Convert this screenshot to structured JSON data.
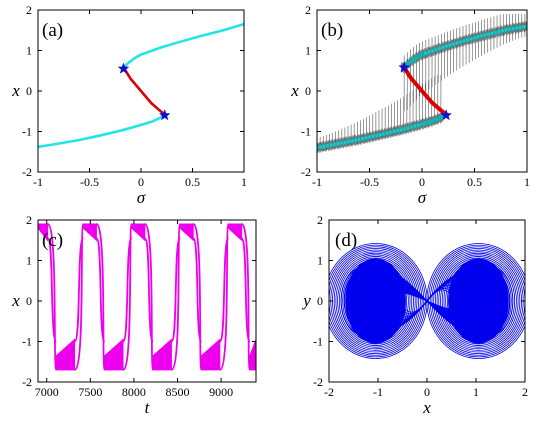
{
  "chart_data": [
    {
      "panel": "(a)",
      "type": "line",
      "xlabel": "σ",
      "ylabel": "x",
      "xlim": [
        -1,
        1
      ],
      "ylim": [
        -2,
        2
      ],
      "xticks": [
        -1,
        -0.5,
        0,
        0.5,
        1
      ],
      "yticks": [
        -2,
        -1,
        0,
        1,
        2
      ],
      "xtick_labels": [
        "-1",
        "-0.5",
        "0",
        "0.5",
        "1"
      ],
      "ytick_labels": [
        "-2",
        "-1",
        "0",
        "1",
        "2"
      ],
      "branches": [
        {
          "role": "stable-lower",
          "color": "#22e5e5",
          "x": [
            -1.0,
            -0.8,
            -0.6,
            -0.4,
            -0.2,
            0.0,
            0.1,
            0.18,
            0.23
          ],
          "y": [
            -1.38,
            -1.3,
            -1.21,
            -1.1,
            -0.98,
            -0.84,
            -0.76,
            -0.67,
            -0.58
          ]
        },
        {
          "role": "unstable-middle",
          "color": "#dd0000",
          "x": [
            -0.17,
            -0.1,
            0.0,
            0.1,
            0.2,
            0.23
          ],
          "y": [
            0.58,
            0.3,
            0.0,
            -0.3,
            -0.52,
            -0.58
          ]
        },
        {
          "role": "stable-upper",
          "color": "#22e5e5",
          "x": [
            -0.17,
            -0.12,
            -0.05,
            0.0,
            0.2,
            0.4,
            0.6,
            0.8,
            1.0
          ],
          "y": [
            0.58,
            0.7,
            0.83,
            0.9,
            1.08,
            1.23,
            1.37,
            1.5,
            1.65
          ]
        }
      ],
      "fold_points": {
        "color": "#1010cc",
        "x": [
          -0.17,
          0.23
        ],
        "y": [
          0.55,
          -0.6
        ]
      }
    },
    {
      "panel": "(b)",
      "type": "line",
      "xlabel": "σ",
      "ylabel": "x",
      "xlim": [
        -1,
        1
      ],
      "ylim": [
        -2,
        2
      ],
      "xticks": [
        -1,
        -0.5,
        0,
        0.5,
        1
      ],
      "yticks": [
        -2,
        -1,
        0,
        1,
        2
      ],
      "xtick_labels": [
        "-1",
        "-0.5",
        "0",
        "0.5",
        "1"
      ],
      "ytick_labels": [
        "-2",
        "-1",
        "0",
        "1",
        "2"
      ],
      "trajectory_color": "#555555",
      "spike_lower_range": [
        -1.0,
        0.2
      ],
      "spike_upper_range": [
        -0.2,
        1.0
      ],
      "spike_count": 40,
      "branches": [
        {
          "role": "stable-lower",
          "color": "#22c8c8",
          "x": [
            -1.0,
            -0.8,
            -0.6,
            -0.4,
            -0.2,
            0.0,
            0.1,
            0.18,
            0.23
          ],
          "y": [
            -1.4,
            -1.3,
            -1.2,
            -1.08,
            -0.96,
            -0.82,
            -0.74,
            -0.66,
            -0.58
          ]
        },
        {
          "role": "unstable-middle",
          "color": "#dd0000",
          "x": [
            -0.17,
            -0.1,
            0.0,
            0.1,
            0.2,
            0.23
          ],
          "y": [
            0.58,
            0.3,
            0.0,
            -0.3,
            -0.52,
            -0.58
          ]
        },
        {
          "role": "stable-upper",
          "color": "#22c8c8",
          "x": [
            -0.17,
            -0.12,
            -0.05,
            0.0,
            0.2,
            0.4,
            0.6,
            0.8,
            1.0
          ],
          "y": [
            0.58,
            0.7,
            0.83,
            0.9,
            1.08,
            1.24,
            1.38,
            1.51,
            1.6
          ]
        }
      ],
      "fold_points": {
        "color": "#1010cc",
        "x": [
          -0.17,
          0.23
        ],
        "y": [
          0.58,
          -0.6
        ]
      }
    },
    {
      "panel": "(c)",
      "type": "area",
      "xlabel": "t",
      "ylabel": "x",
      "xlim": [
        6900,
        9400
      ],
      "ylim": [
        -2,
        2
      ],
      "xticks": [
        7000,
        7500,
        8000,
        8500,
        9000
      ],
      "yticks": [
        -2,
        -1,
        0,
        1,
        2
      ],
      "xtick_labels": [
        "7000",
        "7500",
        "8000",
        "8500",
        "9000"
      ],
      "ytick_labels": [
        "-2",
        "-1",
        "0",
        "1",
        "2"
      ],
      "color": "#ee00ee",
      "period": 555,
      "high_segments": [
        [
          6900,
          7010
        ],
        [
          7420,
          7570
        ],
        [
          7975,
          8125
        ],
        [
          8530,
          8680
        ],
        [
          9085,
          9235
        ]
      ],
      "low_segments": [
        [
          7110,
          7320
        ],
        [
          7665,
          7875
        ],
        [
          8220,
          8430
        ],
        [
          8775,
          8985
        ],
        [
          9330,
          9400
        ]
      ],
      "high_band": [
        1.55,
        1.9
      ],
      "low_band": [
        -1.7,
        -1.0
      ]
    },
    {
      "panel": "(d)",
      "type": "line",
      "xlabel": "x",
      "ylabel": "y",
      "xlim": [
        -2,
        2
      ],
      "ylim": [
        -2,
        2
      ],
      "xticks": [
        -2,
        -1,
        0,
        1,
        2
      ],
      "yticks": [
        -2,
        -1,
        0,
        1,
        2
      ],
      "xtick_labels": [
        "-2",
        "-1",
        "0",
        "1",
        "2"
      ],
      "ytick_labels": [
        "-2",
        "-1",
        "0",
        "1",
        "2"
      ],
      "color": "#0000ee",
      "loop_count": 22,
      "x_extent": [
        -1.75,
        1.75
      ],
      "y_extent": [
        -1.45,
        1.45
      ]
    }
  ]
}
